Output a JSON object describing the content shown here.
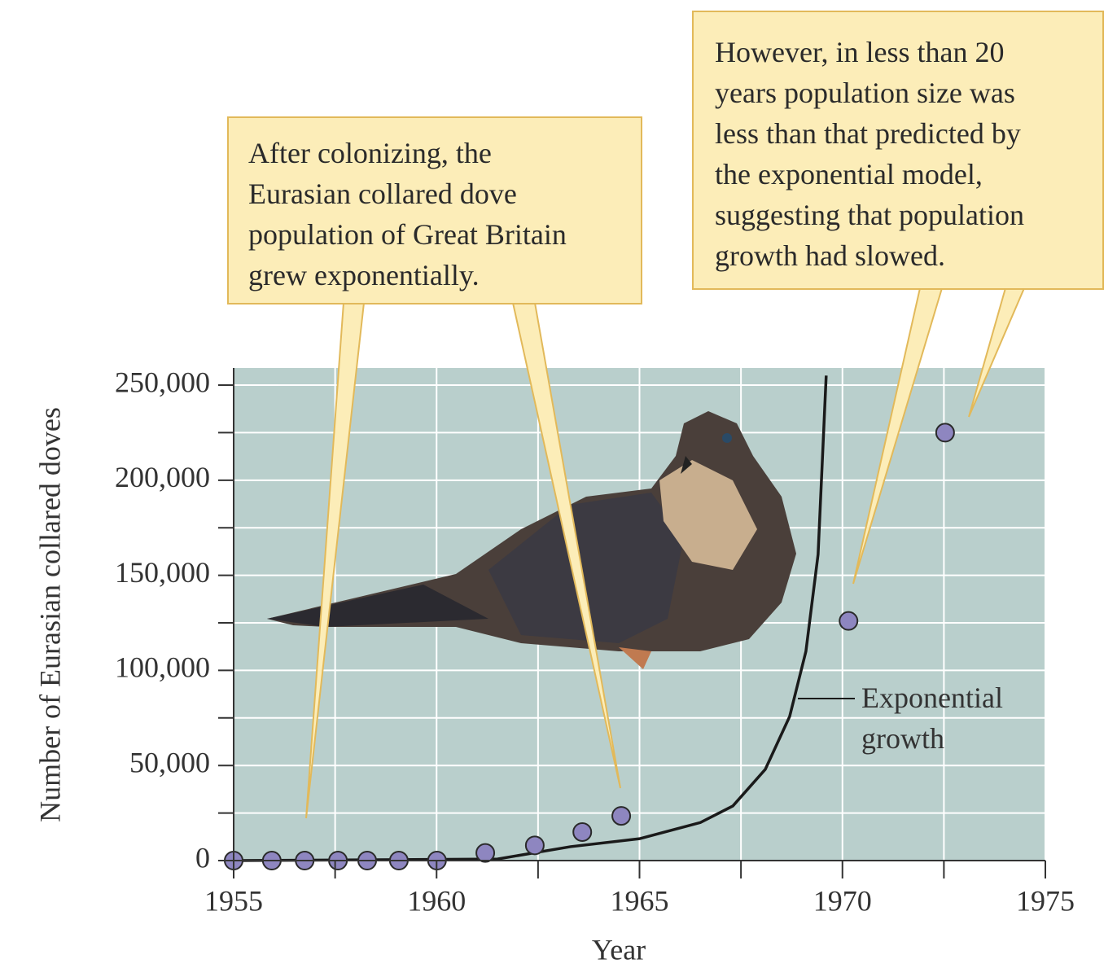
{
  "chart_data": {
    "type": "scatter",
    "x_label": "Year",
    "y_label": "Number of Eurasian collared doves",
    "x": [
      1955,
      1955.94,
      1956.75,
      1957.57,
      1958.29,
      1959.07,
      1960.01,
      1961.2,
      1962.42,
      1963.59,
      1964.55,
      1970.15,
      1972.53
    ],
    "values": [
      0,
      0,
      0,
      0,
      0,
      0,
      0,
      4000,
      8000,
      15000,
      23500,
      126000,
      225000
    ],
    "color": "#8e86c0",
    "series": [
      {
        "name": "Exponential growth",
        "type": "line",
        "color": "#1a1a1a",
        "x": [
          1955,
          1961.5,
          1963.3,
          1965,
          1966.5,
          1967.3,
          1968.1,
          1968.7,
          1969.1,
          1969.4,
          1969.6
        ],
        "values": [
          0,
          800,
          7300,
          11500,
          20000,
          28700,
          48000,
          75800,
          110000,
          161000,
          255000
        ]
      }
    ],
    "xlim": [
      1955,
      1975
    ],
    "ylim": [
      0,
      259000
    ],
    "xticks": [
      1955,
      1960,
      1965,
      1970,
      1975
    ],
    "yticks": [
      0,
      {
        "value": 50000,
        "label": "50,000"
      },
      {
        "value": 100000,
        "label": "100,000"
      },
      {
        "value": 150000,
        "label": "150,000"
      },
      {
        "value": 200000,
        "label": "200,000"
      },
      {
        "value": 250000,
        "label": "250,000"
      }
    ],
    "grid": true,
    "annotations": [
      "After colonizing, the\nEurasian collared dove\npopulation of Great Britain\ngrew exponentially.",
      "However, in less than 20\nyears population size was\nless than that predicted by\nthe exponential model,\nsuggesting that population\ngrowth had slowed."
    ]
  }
}
